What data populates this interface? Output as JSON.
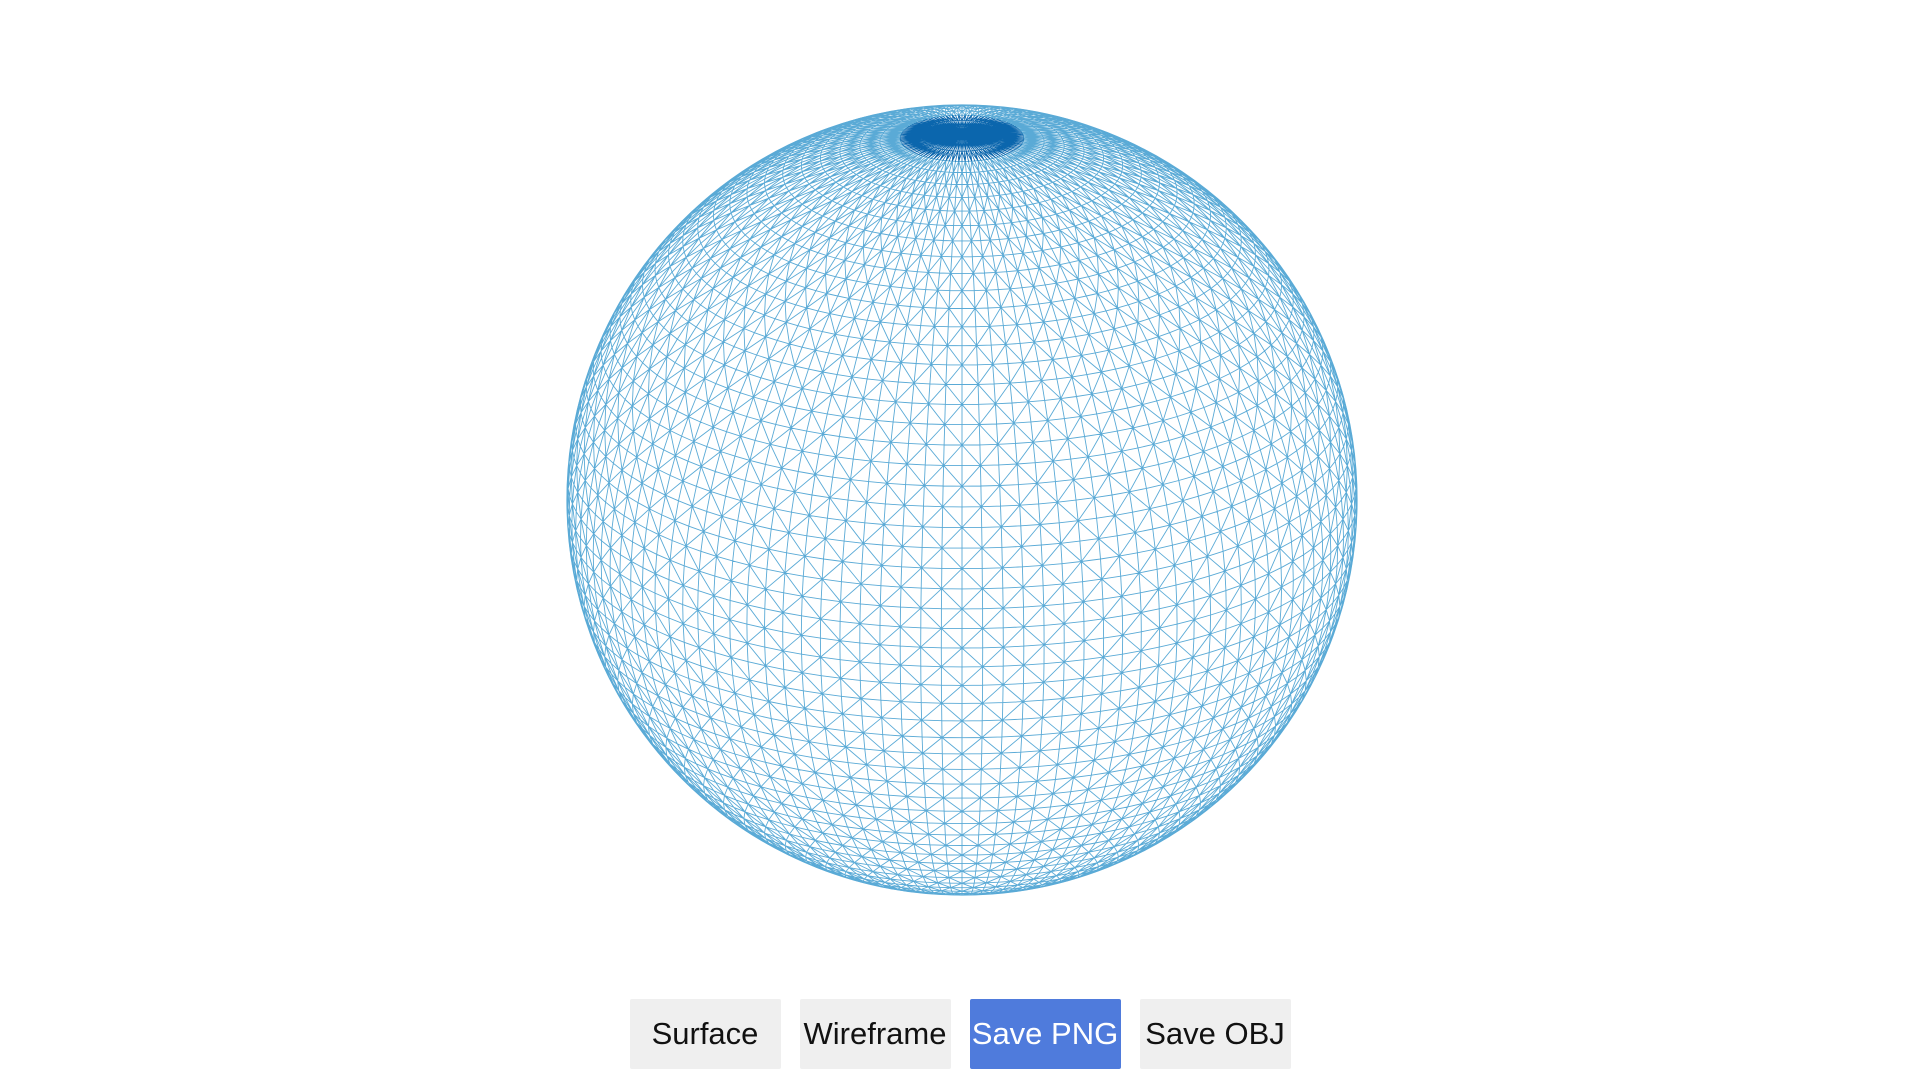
{
  "viewer": {
    "mesh": "sphere",
    "render_mode": "wireframe",
    "wire_color": "#5aaad6",
    "dense_color": "#0b66ad",
    "latitude_bands": 60,
    "longitude_segments": 120,
    "tilt_deg": 22
  },
  "toolbar": {
    "surface_label": "Surface",
    "wireframe_label": "Wireframe",
    "save_png_label": "Save PNG",
    "save_obj_label": "Save OBJ",
    "active": "save_png",
    "button_color": "#efefef",
    "active_color": "#4f7bdc"
  }
}
